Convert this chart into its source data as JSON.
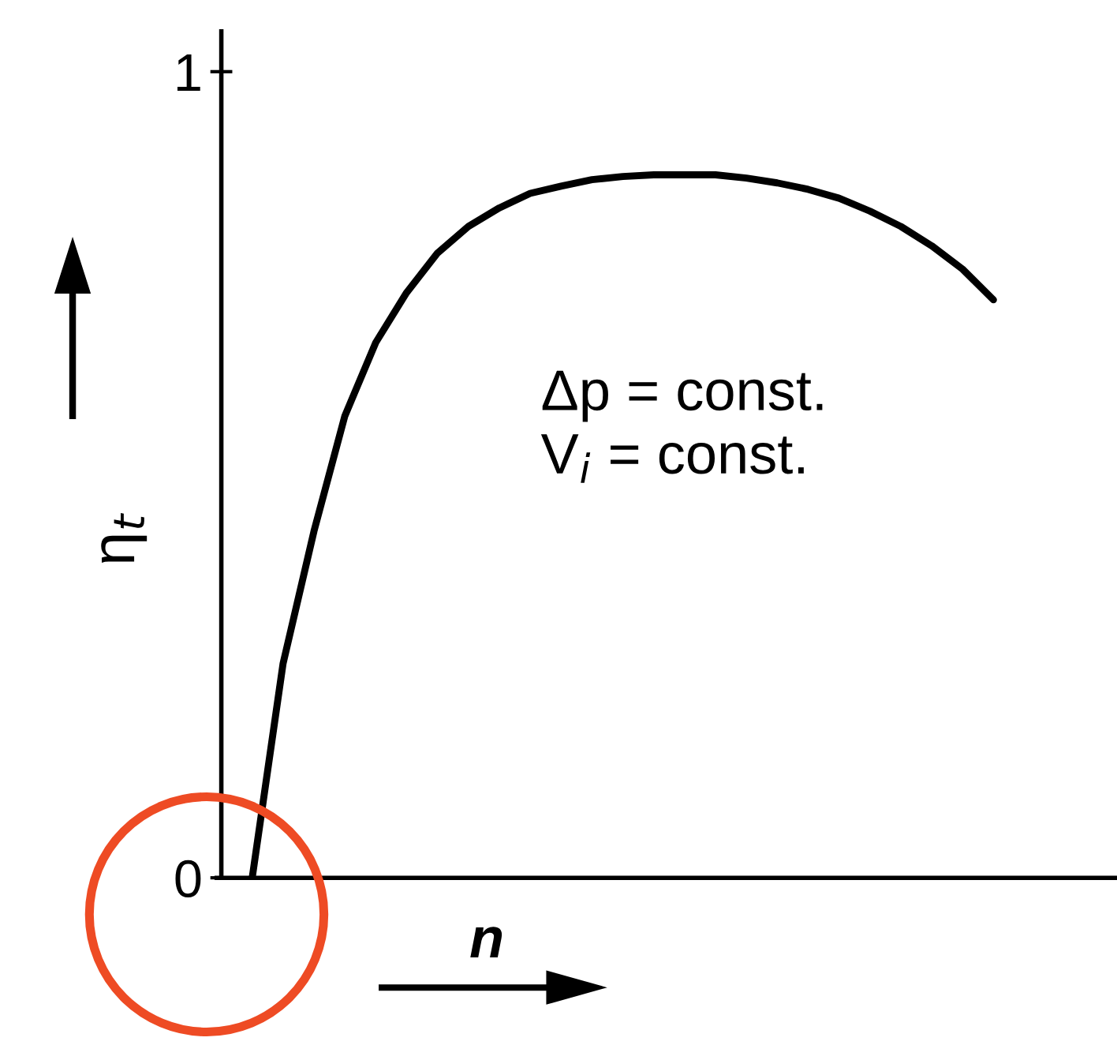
{
  "chart_data": {
    "type": "line",
    "relative": false,
    "xlabel": "n",
    "ylabel": "η$_{t}$",
    "categories": [
      null,
      null,
      null,
      null,
      null,
      null,
      null,
      null,
      null,
      null,
      null,
      null,
      null,
      null,
      null,
      null,
      null,
      null,
      null,
      null,
      null,
      null,
      null,
      null,
      null,
      null
    ],
    "series": [
      {
        "color": "#000000",
        "values": [
          null,
          0,
          0.266,
          0.43,
          0.573,
          0.664,
          0.726,
          0.775,
          0.808,
          0.831,
          0.849,
          0.858,
          0.866,
          0.87,
          0.872,
          0.872,
          0.872,
          0.868,
          0.862,
          0.854,
          0.843,
          0.827,
          0.808,
          0.784,
          0.755,
          0.717
        ]
      }
    ],
    "ylim": [
      0,
      1.05
    ],
    "yticks": [
      0,
      1
    ],
    "annotations": [
      "Δp = const.",
      "V$_{i}$ = const."
    ],
    "grid": false,
    "legend": false,
    "marker": "none",
    "line_style": "solid"
  }
}
